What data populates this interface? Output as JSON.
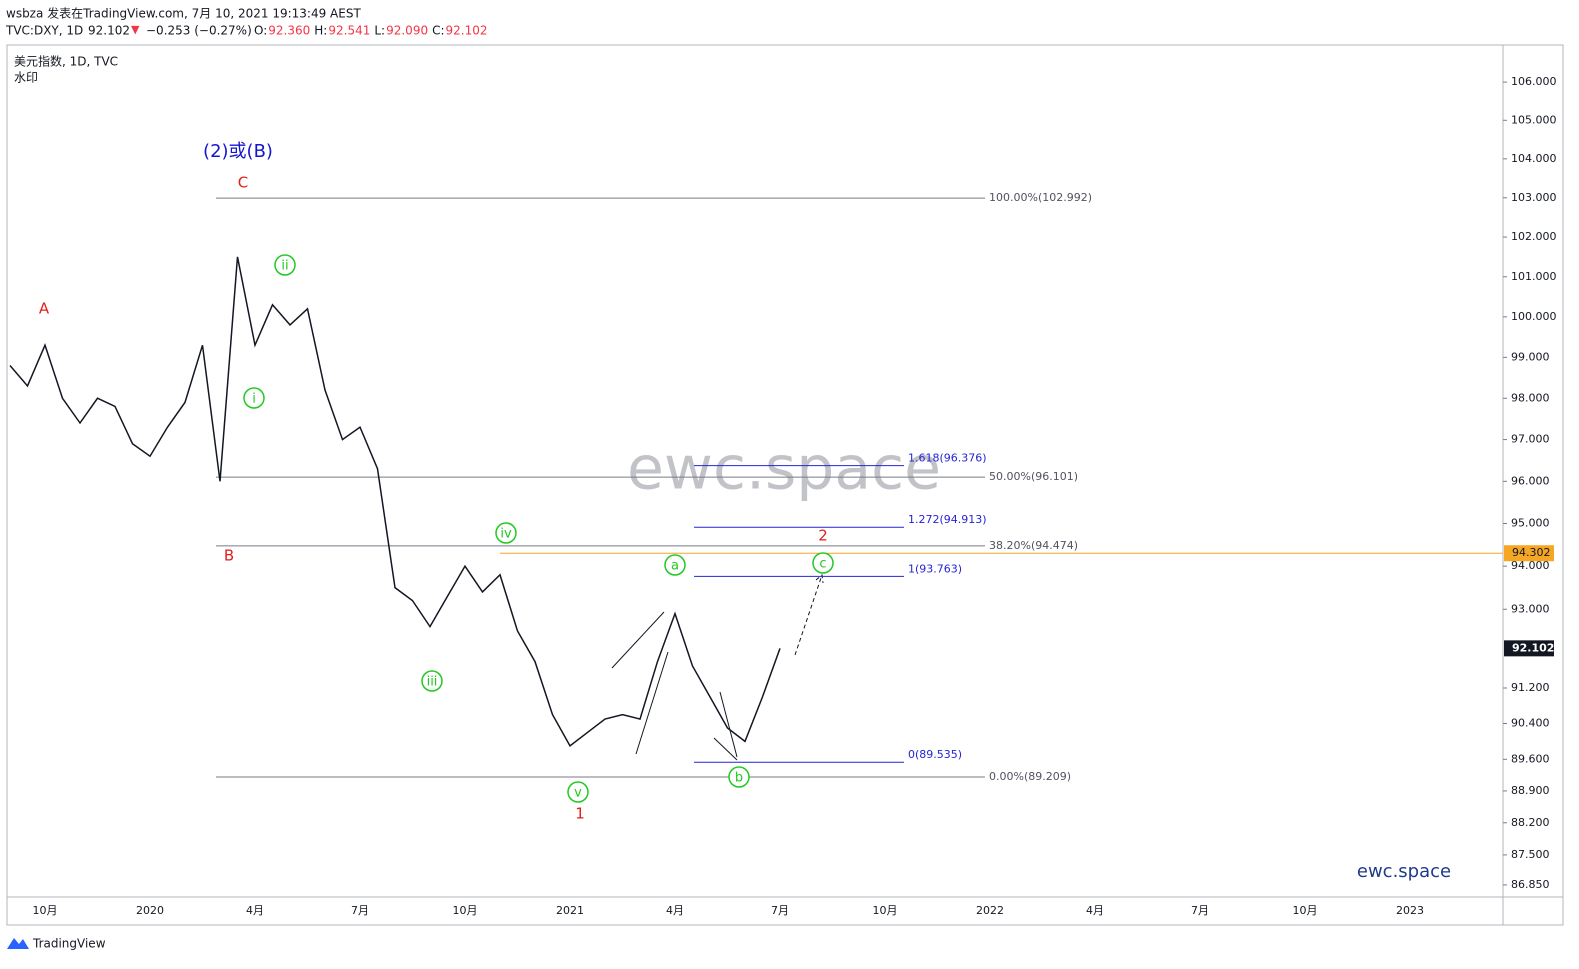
{
  "header": {
    "publish": "wsbza 发表在TradingView.com, 7月 10, 2021 19:13:49 AEST",
    "symbol": "TVC:DXY, 1D",
    "last": "92.102",
    "arrow": "▼",
    "change": "−0.253 (−0.27%)",
    "ohlc": [
      {
        "key": "O:",
        "value": "92.360"
      },
      {
        "key": "H:",
        "value": "92.541"
      },
      {
        "key": "L:",
        "value": "92.090"
      },
      {
        "key": "C:",
        "value": "92.102"
      }
    ]
  },
  "legend": {
    "name": "美元指数, 1D, TVC",
    "note": "水印"
  },
  "watermark": "ewc.space",
  "brand": "ewc.space",
  "footer": "TradingView",
  "chart_data": {
    "type": "line",
    "log_scale": true,
    "color": "#131722",
    "categories": [
      null,
      null,
      "10月",
      null,
      null,
      null,
      null,
      null,
      "2020",
      null,
      null,
      null,
      null,
      null,
      "4月",
      null,
      null,
      null,
      null,
      null,
      "7月",
      null,
      null,
      null,
      null,
      null,
      "10月",
      null,
      null,
      null,
      null,
      null,
      "2021",
      null,
      null,
      null,
      null,
      null,
      "4月",
      null,
      null,
      null,
      null,
      null,
      "7月",
      null,
      null,
      null,
      null,
      null,
      "10月",
      null,
      null,
      null,
      null,
      null,
      "2022",
      null,
      null,
      null,
      null,
      null,
      "4月",
      null,
      null,
      null,
      null,
      null,
      "7月",
      null,
      null,
      null,
      null,
      null,
      "10月",
      null,
      null,
      null,
      null,
      null,
      "2023",
      null,
      null,
      null,
      null,
      null
    ],
    "values": [
      98.8,
      98.3,
      99.3,
      98.0,
      97.4,
      98.0,
      97.8,
      96.9,
      96.6,
      97.3,
      97.9,
      99.3,
      96.0,
      101.5,
      99.3,
      100.3,
      99.8,
      100.2,
      98.2,
      97.0,
      97.3,
      96.3,
      93.5,
      93.2,
      92.6,
      93.3,
      94.0,
      93.4,
      93.8,
      92.5,
      91.8,
      90.6,
      89.9,
      90.2,
      90.5,
      90.6,
      90.5,
      91.8,
      92.9,
      91.7,
      91.0,
      90.3,
      90.0,
      91.0,
      92.102,
      null,
      null,
      null,
      null,
      null,
      null,
      null,
      null,
      null,
      null,
      null,
      null,
      null,
      null,
      null,
      null,
      null,
      null,
      null,
      null,
      null,
      null,
      null,
      null,
      null,
      null,
      null,
      null,
      null,
      null,
      null,
      null,
      null,
      null,
      null,
      null,
      null,
      null,
      null,
      null,
      null
    ],
    "ylim": [
      86.59,
      106.98
    ],
    "yticks": [
      {
        "value": 106,
        "label": "106.000"
      },
      {
        "value": 105,
        "label": "105.000"
      },
      {
        "value": 104,
        "label": "104.000"
      },
      {
        "value": 103,
        "label": "103.000"
      },
      {
        "value": 102,
        "label": "102.000"
      },
      {
        "value": 101,
        "label": "101.000"
      },
      {
        "value": 100,
        "label": "100.000"
      },
      {
        "value": 99,
        "label": "99.000"
      },
      {
        "value": 98,
        "label": "98.000"
      },
      {
        "value": 97,
        "label": "97.000"
      },
      {
        "value": 96,
        "label": "96.000"
      },
      {
        "value": 95,
        "label": "95.000"
      },
      {
        "value": 94,
        "label": "94.000"
      },
      {
        "value": 93,
        "label": "93.000"
      },
      {
        "value": 91.2,
        "label": "91.200"
      },
      {
        "value": 90.4,
        "label": "90.400"
      },
      {
        "value": 89.6,
        "label": "89.600"
      },
      {
        "value": 88.9,
        "label": "88.900"
      },
      {
        "value": 88.2,
        "label": "88.200"
      },
      {
        "value": 87.5,
        "label": "87.500"
      },
      {
        "value": 86.85,
        "label": "86.850"
      }
    ],
    "last_price": {
      "value": 92.102,
      "label": "92.102"
    },
    "alert_line": {
      "value": 94.302,
      "label": "94.302",
      "color": "#f5a623"
    },
    "fib_retracement": [
      {
        "value": 102.992,
        "label": "100.00%(102.992)"
      },
      {
        "value": 96.101,
        "label": "50.00%(96.101)"
      },
      {
        "value": 94.474,
        "label": "38.20%(94.474)"
      },
      {
        "value": 89.209,
        "label": "0.00%(89.209)"
      }
    ],
    "fib_extension": [
      {
        "value": 96.376,
        "label": "1.618(96.376)"
      },
      {
        "value": 94.913,
        "label": "1.272(94.913)"
      },
      {
        "value": 93.763,
        "label": "1(93.763)"
      },
      {
        "value": 89.535,
        "label": "0(89.535)"
      }
    ],
    "annotations": [
      "(2)或(B)",
      "C",
      "A",
      "B",
      "ii",
      "i",
      "iv",
      "iii",
      "v",
      "1",
      "a",
      "b",
      "c",
      "2"
    ]
  }
}
